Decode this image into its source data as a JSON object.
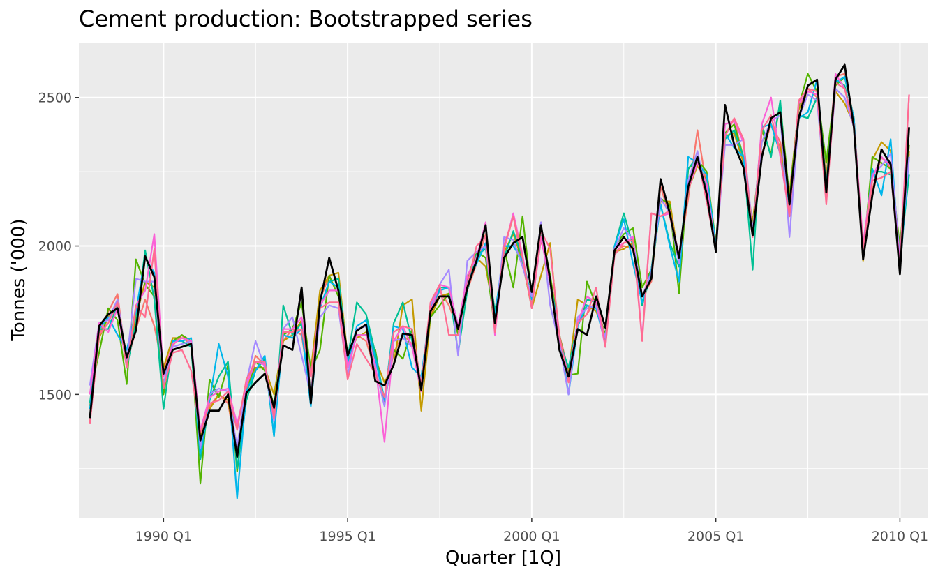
{
  "chart_data": {
    "type": "line",
    "title": "Cement production: Bootstrapped series",
    "xlabel": "Quarter [1Q]",
    "ylabel": "Tonnes ('000)",
    "xlim": [
      1987.7,
      2010.75
    ],
    "ylim": [
      1085,
      2685
    ],
    "x_ticks": [
      {
        "value": 1990.0,
        "label": "1990 Q1"
      },
      {
        "value": 1995.0,
        "label": "1995 Q1"
      },
      {
        "value": 2000.0,
        "label": "2000 Q1"
      },
      {
        "value": 2005.0,
        "label": "2005 Q1"
      },
      {
        "value": 2010.0,
        "label": "2010 Q1"
      }
    ],
    "y_ticks": [
      {
        "value": 1500,
        "label": "1500"
      },
      {
        "value": 2000,
        "label": "2000"
      },
      {
        "value": 2500,
        "label": "2500"
      }
    ],
    "grid": true,
    "legend": "none",
    "x_start": 1988.0,
    "x_step": 0.25,
    "series": [
      {
        "color": "#000000",
        "values": [
          1420,
          1730,
          1770,
          1790,
          1625,
          1715,
          1965,
          1895,
          1570,
          1650,
          1660,
          1670,
          1345,
          1445,
          1445,
          1500,
          1290,
          1505,
          1540,
          1570,
          1455,
          1665,
          1650,
          1860,
          1470,
          1810,
          1960,
          1850,
          1630,
          1715,
          1735,
          1545,
          1530,
          1600,
          1705,
          1700,
          1515,
          1780,
          1830,
          1830,
          1720,
          1860,
          1950,
          2070,
          1740,
          1960,
          2010,
          2030,
          1845,
          2070,
          1885,
          1650,
          1560,
          1720,
          1700,
          1830,
          1725,
          1985,
          2030,
          1990,
          1830,
          1890,
          2225,
          2110,
          1960,
          2200,
          2300,
          2175,
          1980,
          2475,
          2340,
          2265,
          2035,
          2300,
          2430,
          2450,
          2140,
          2430,
          2540,
          2560,
          2180,
          2560,
          2610,
          2400,
          1955,
          2170,
          2325,
          2275,
          1905,
          2400
        ]
      },
      {
        "color": "#F8766D",
        "values": [
          1405,
          1700,
          1780,
          1838,
          1600,
          1720,
          1820,
          1730,
          1580,
          1665,
          1700,
          1660,
          1370,
          1460,
          1500,
          1470,
          1300,
          1520,
          1630,
          1600,
          1450,
          1680,
          1720,
          1700,
          1500,
          1820,
          1900,
          1830,
          1620,
          1700,
          1680,
          1580,
          1480,
          1640,
          1700,
          1670,
          1520,
          1770,
          1850,
          1800,
          1720,
          1850,
          1940,
          2040,
          1750,
          1990,
          2100,
          1940,
          1800,
          2020,
          1900,
          1700,
          1580,
          1740,
          1770,
          1820,
          1690,
          1980,
          2000,
          1990,
          1830,
          1880,
          2200,
          2100,
          1960,
          2160,
          2390,
          2200,
          1990,
          2370,
          2430,
          2290,
          2050,
          2310,
          2410,
          2350,
          2180,
          2460,
          2530,
          2500,
          2230,
          2570,
          2580,
          2430,
          1990,
          2190,
          2300,
          2260,
          1920,
          2310
        ]
      },
      {
        "color": "#C49A00",
        "values": [
          1460,
          1690,
          1760,
          1800,
          1620,
          1760,
          1880,
          1860,
          1590,
          1690,
          1690,
          1680,
          1360,
          1450,
          1500,
          1480,
          1300,
          1530,
          1590,
          1590,
          1500,
          1680,
          1700,
          1750,
          1580,
          1850,
          1900,
          1910,
          1630,
          1690,
          1710,
          1620,
          1540,
          1600,
          1800,
          1820,
          1445,
          1760,
          1830,
          1840,
          1700,
          1870,
          1960,
          1930,
          1760,
          1980,
          2040,
          1950,
          1790,
          1900,
          2010,
          1670,
          1570,
          1820,
          1800,
          1780,
          1700,
          1980,
          1990,
          2010,
          1830,
          1900,
          2150,
          2150,
          1950,
          2190,
          2270,
          2220,
          2000,
          2370,
          2380,
          2280,
          2080,
          2350,
          2410,
          2330,
          2170,
          2460,
          2510,
          2490,
          2230,
          2520,
          2480,
          2410,
          1950,
          2290,
          2350,
          2320,
          1960,
          2320
        ]
      },
      {
        "color": "#53B400",
        "values": [
          1500,
          1640,
          1790,
          1750,
          1535,
          1955,
          1870,
          1830,
          1500,
          1680,
          1700,
          1680,
          1200,
          1550,
          1490,
          1600,
          1240,
          1500,
          1610,
          1580,
          1460,
          1700,
          1720,
          1810,
          1580,
          1650,
          1900,
          1830,
          1590,
          1700,
          1700,
          1650,
          1470,
          1650,
          1620,
          1720,
          1530,
          1760,
          1800,
          1840,
          1700,
          1890,
          1980,
          1960,
          1720,
          1990,
          1860,
          2100,
          1830,
          2060,
          1900,
          1700,
          1565,
          1570,
          1880,
          1800,
          1700,
          2000,
          2040,
          2060,
          1860,
          1920,
          2160,
          2140,
          1840,
          2260,
          2290,
          2250,
          2010,
          2380,
          2410,
          2300,
          2050,
          2390,
          2310,
          2480,
          2160,
          2470,
          2580,
          2520,
          2280,
          2540,
          2570,
          2430,
          1960,
          2300,
          2280,
          2260,
          2000,
          2340
        ]
      },
      {
        "color": "#00C094",
        "values": [
          1470,
          1720,
          1720,
          1800,
          1590,
          1740,
          1985,
          1820,
          1450,
          1680,
          1680,
          1660,
          1280,
          1480,
          1560,
          1610,
          1250,
          1480,
          1580,
          1620,
          1360,
          1800,
          1700,
          1740,
          1490,
          1790,
          1880,
          1890,
          1620,
          1810,
          1770,
          1640,
          1480,
          1740,
          1810,
          1680,
          1540,
          1790,
          1860,
          1860,
          1640,
          1850,
          1970,
          1990,
          1780,
          1960,
          2050,
          1960,
          1820,
          2040,
          1870,
          1680,
          1590,
          1740,
          1820,
          1810,
          1680,
          2000,
          2110,
          2000,
          1800,
          1910,
          2140,
          2010,
          1930,
          2260,
          2300,
          2200,
          1990,
          2360,
          2390,
          2300,
          1920,
          2410,
          2300,
          2490,
          2100,
          2440,
          2430,
          2500,
          2200,
          2560,
          2540,
          2400,
          1980,
          2250,
          2250,
          2240,
          1960,
          2240
        ]
      },
      {
        "color": "#00B6EB",
        "values": [
          1450,
          1720,
          1760,
          1700,
          1650,
          1780,
          1960,
          1910,
          1530,
          1680,
          1680,
          1690,
          1300,
          1480,
          1670,
          1560,
          1150,
          1510,
          1580,
          1630,
          1360,
          1700,
          1690,
          1720,
          1460,
          1790,
          1880,
          1860,
          1600,
          1730,
          1750,
          1620,
          1480,
          1730,
          1720,
          1590,
          1560,
          1790,
          1850,
          1860,
          1730,
          1880,
          1940,
          2010,
          1760,
          2000,
          2000,
          1950,
          1820,
          2030,
          1880,
          1700,
          1500,
          1730,
          1800,
          1790,
          1670,
          2000,
          2090,
          1940,
          1810,
          1920,
          2140,
          2000,
          1880,
          2300,
          2280,
          2240,
          2000,
          2380,
          2330,
          2300,
          2040,
          2400,
          2410,
          2310,
          2130,
          2430,
          2450,
          2560,
          2200,
          2550,
          2570,
          2430,
          1960,
          2260,
          2170,
          2360,
          1920,
          2300
        ]
      },
      {
        "color": "#A58AFF",
        "values": [
          1530,
          1740,
          1750,
          1820,
          1610,
          1890,
          1880,
          1880,
          1530,
          1660,
          1670,
          1680,
          1320,
          1500,
          1520,
          1510,
          1320,
          1540,
          1680,
          1590,
          1410,
          1720,
          1760,
          1630,
          1500,
          1760,
          1800,
          1790,
          1560,
          1720,
          1730,
          1590,
          1460,
          1680,
          1690,
          1660,
          1540,
          1800,
          1870,
          1920,
          1630,
          1950,
          1980,
          2000,
          1720,
          2030,
          2020,
          1930,
          1830,
          2080,
          1800,
          1670,
          1500,
          1760,
          1790,
          1800,
          1690,
          1990,
          2060,
          2020,
          1830,
          1910,
          2160,
          2110,
          1940,
          2220,
          2320,
          2170,
          1990,
          2340,
          2340,
          2360,
          2050,
          2350,
          2420,
          2440,
          2030,
          2430,
          2510,
          2490,
          2160,
          2530,
          2500,
          2400,
          1980,
          2240,
          2270,
          2310,
          1960,
          2300
        ]
      },
      {
        "color": "#FB61D7",
        "values": [
          1500,
          1740,
          1710,
          1790,
          1590,
          1800,
          1850,
          2040,
          1560,
          1670,
          1690,
          1680,
          1380,
          1490,
          1510,
          1520,
          1400,
          1530,
          1610,
          1600,
          1430,
          1720,
          1720,
          1760,
          1560,
          1800,
          1850,
          1850,
          1590,
          1700,
          1700,
          1600,
          1340,
          1680,
          1730,
          1660,
          1510,
          1780,
          1870,
          1860,
          1730,
          1900,
          1960,
          2080,
          1700,
          1990,
          2110,
          1970,
          1790,
          2030,
          1870,
          1690,
          1560,
          1740,
          1830,
          1810,
          1660,
          1990,
          2010,
          2030,
          1690,
          2110,
          2100,
          2110,
          1970,
          2190,
          2280,
          2210,
          1980,
          2410,
          2420,
          2350,
          2030,
          2410,
          2500,
          2300,
          2100,
          2480,
          2520,
          2510,
          2170,
          2580,
          2530,
          2410,
          2010,
          2230,
          2300,
          2270,
          1940,
          2510
        ]
      },
      {
        "color": "#FF6C91",
        "values": [
          1400,
          1700,
          1740,
          1810,
          1590,
          1800,
          1760,
          1990,
          1520,
          1640,
          1650,
          1580,
          1370,
          1470,
          1480,
          1510,
          1380,
          1550,
          1610,
          1610,
          1420,
          1710,
          1710,
          1720,
          1560,
          1790,
          1810,
          1810,
          1550,
          1670,
          1620,
          1570,
          1490,
          1710,
          1730,
          1720,
          1530,
          1810,
          1870,
          1700,
          1700,
          1870,
          2000,
          2030,
          1710,
          2000,
          2100,
          1960,
          1790,
          2050,
          1990,
          1700,
          1540,
          1740,
          1770,
          1860,
          1660,
          1970,
          2010,
          2020,
          1680,
          2110,
          2100,
          2120,
          1960,
          2190,
          2300,
          2150,
          1990,
          2370,
          2430,
          2360,
          2030,
          2390,
          2440,
          2310,
          2100,
          2490,
          2530,
          2520,
          2140,
          2550,
          2530,
          2400,
          1990,
          2220,
          2230,
          2250,
          1920,
          2510
        ]
      }
    ]
  }
}
